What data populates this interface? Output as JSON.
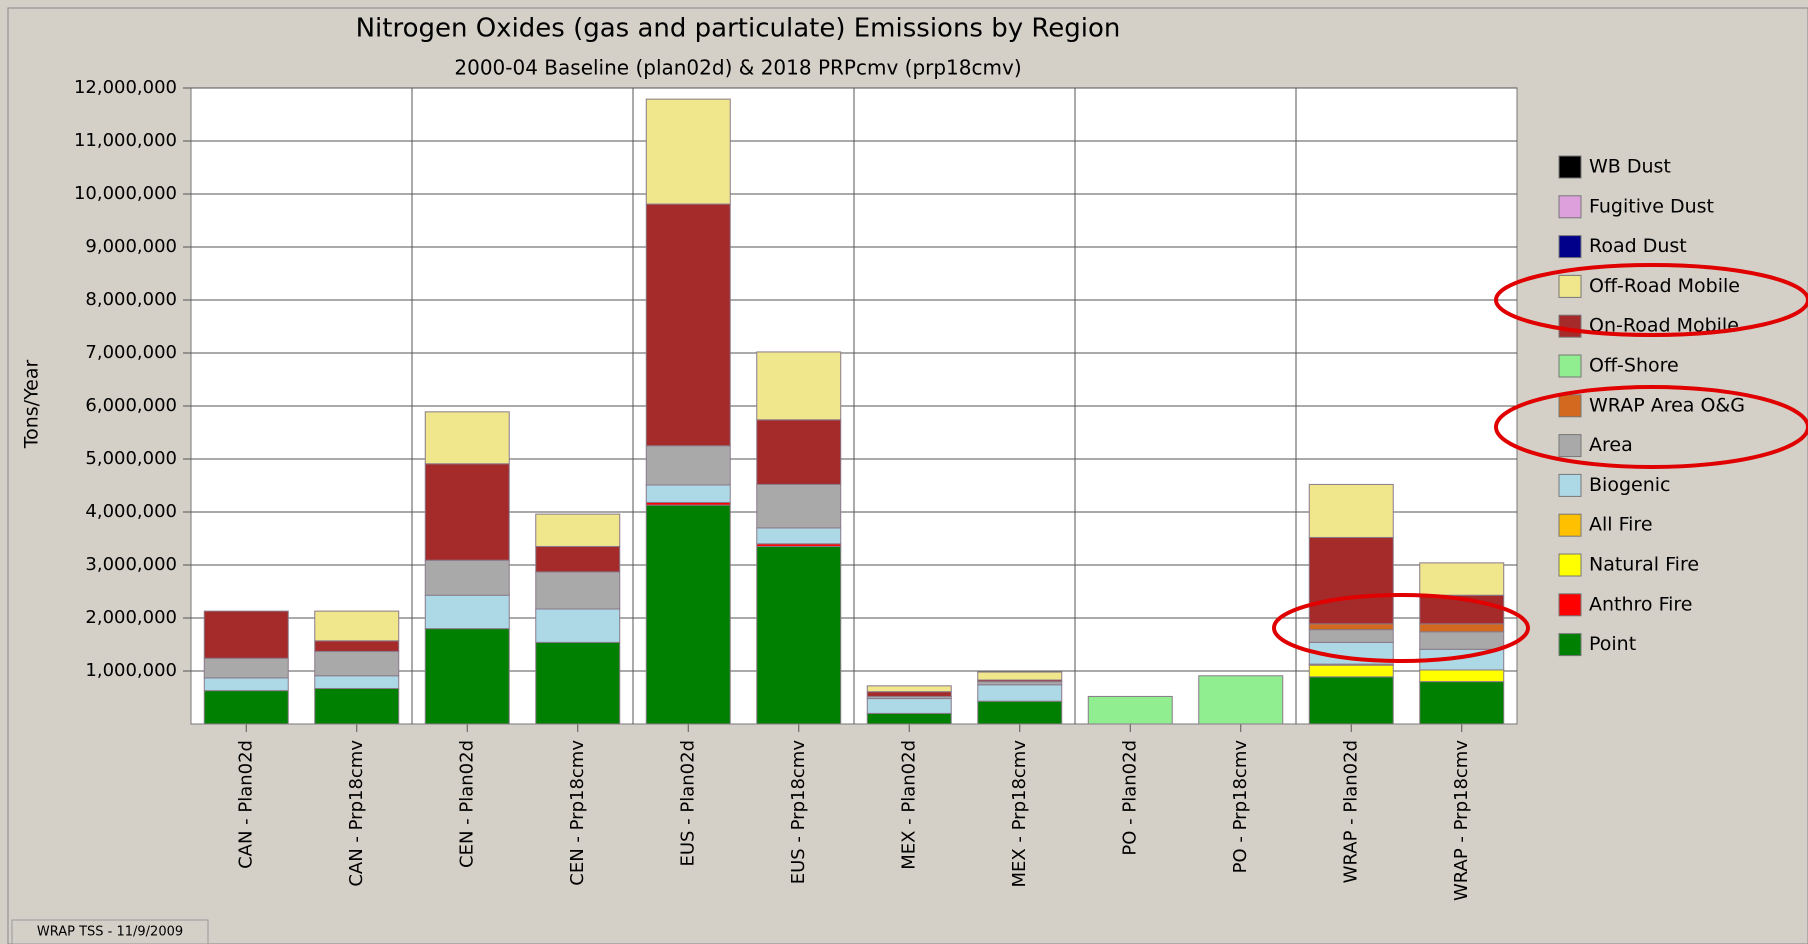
{
  "chart_data": {
    "type": "stacked_bar",
    "title": "Nitrogen Oxides (gas and particulate) Emissions by Region",
    "subtitle": "2000-04 Baseline (plan02d) & 2018 PRPcmv (prp18cmv)",
    "y_label": "Tons/Year",
    "footer": "WRAP TSS - 11/9/2009",
    "categories": [
      "CAN - Plan02d",
      "CAN - Prp18cmv",
      "CEN - Plan02d",
      "CEN - Prp18cmv",
      "EUS - Plan02d",
      "EUS - Prp18cmv",
      "MEX - Plan02d",
      "MEX - Prp18cmv",
      "PO - Plan02d",
      "PO - Prp18cmv",
      "WRAP - Plan02d",
      "WRAP - Prp18cmv"
    ],
    "series": [
      {
        "name": "Point",
        "color": "#008000",
        "values": [
          630000,
          670000,
          1800000,
          1540000,
          4130000,
          3350000,
          200000,
          430000,
          0,
          0,
          890000,
          800000
        ]
      },
      {
        "name": "Anthro Fire",
        "color": "#ff0000",
        "values": [
          0,
          0,
          0,
          0,
          50000,
          50000,
          0,
          0,
          0,
          0,
          0,
          0
        ]
      },
      {
        "name": "Natural Fire",
        "color": "#ffff00",
        "values": [
          0,
          0,
          0,
          0,
          0,
          0,
          0,
          0,
          0,
          0,
          220000,
          220000
        ]
      },
      {
        "name": "All Fire",
        "color": "#ffc000",
        "values": [
          0,
          0,
          0,
          0,
          0,
          0,
          0,
          0,
          0,
          0,
          20000,
          0
        ]
      },
      {
        "name": "Biogenic",
        "color": "#add8e6",
        "values": [
          240000,
          240000,
          630000,
          630000,
          330000,
          300000,
          280000,
          310000,
          0,
          0,
          410000,
          390000
        ]
      },
      {
        "name": "Area",
        "color": "#a9a9a9",
        "values": [
          370000,
          460000,
          660000,
          700000,
          740000,
          820000,
          40000,
          60000,
          0,
          0,
          240000,
          330000
        ]
      },
      {
        "name": "WRAP Area O&G",
        "color": "#d2691e",
        "values": [
          0,
          0,
          0,
          0,
          0,
          0,
          0,
          0,
          0,
          0,
          110000,
          150000
        ]
      },
      {
        "name": "Off-Shore",
        "color": "#90ee90",
        "values": [
          0,
          0,
          0,
          0,
          0,
          0,
          0,
          0,
          520000,
          910000,
          0,
          0
        ]
      },
      {
        "name": "On-Road Mobile",
        "color": "#a52a2a",
        "values": [
          890000,
          200000,
          1820000,
          480000,
          4560000,
          1220000,
          90000,
          30000,
          0,
          0,
          1630000,
          540000
        ]
      },
      {
        "name": "Off-Road Mobile",
        "color": "#f0e68c",
        "values": [
          0,
          560000,
          980000,
          610000,
          1980000,
          1280000,
          110000,
          150000,
          0,
          0,
          1000000,
          610000
        ]
      },
      {
        "name": "Road Dust",
        "color": "#00008b",
        "values": [
          0,
          0,
          0,
          0,
          0,
          0,
          0,
          0,
          0,
          0,
          0,
          0
        ]
      },
      {
        "name": "Fugitive Dust",
        "color": "#dda0dd",
        "values": [
          0,
          0,
          0,
          0,
          0,
          0,
          0,
          0,
          0,
          0,
          0,
          0
        ]
      },
      {
        "name": "WB Dust",
        "color": "#000000",
        "values": [
          0,
          0,
          0,
          0,
          0,
          0,
          0,
          0,
          0,
          0,
          0,
          0
        ]
      }
    ],
    "ylim": [
      0,
      12000000
    ],
    "yticks": [
      {
        "value": 1000000,
        "label": "1,000,000"
      },
      {
        "value": 2000000,
        "label": "2,000,000"
      },
      {
        "value": 3000000,
        "label": "3,000,000"
      },
      {
        "value": 4000000,
        "label": "4,000,000"
      },
      {
        "value": 5000000,
        "label": "5,000,000"
      },
      {
        "value": 6000000,
        "label": "6,000,000"
      },
      {
        "value": 7000000,
        "label": "7,000,000"
      },
      {
        "value": 8000000,
        "label": "8,000,000"
      },
      {
        "value": 9000000,
        "label": "9,000,000"
      },
      {
        "value": 10000000,
        "label": "10,000,000"
      },
      {
        "value": 11000000,
        "label": "11,000,000"
      },
      {
        "value": 12000000,
        "label": "12,000,000"
      }
    ],
    "grid": true
  }
}
